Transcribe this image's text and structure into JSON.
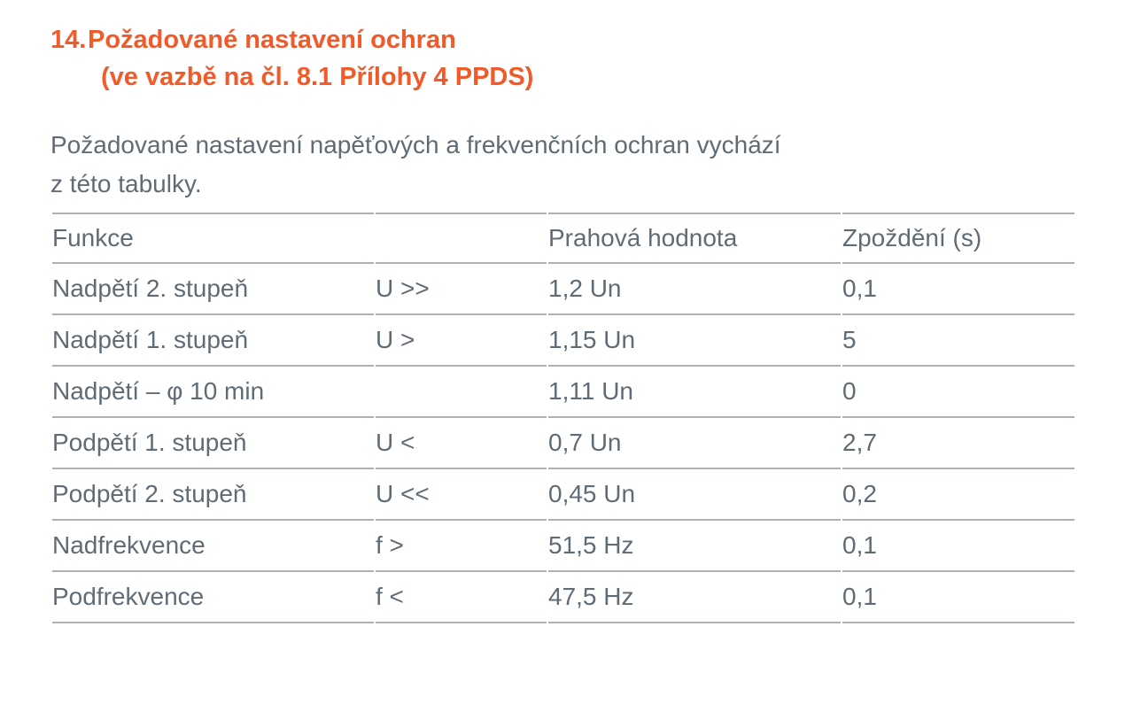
{
  "heading": {
    "number": "14.",
    "line1": "Požadované nastavení ochran",
    "line2": "(ve vazbě na čl. 8.1 Přílohy 4 PPDS)"
  },
  "intro": {
    "line1": "Požadované nastavení napěťových a frekvenčních ochran vychází",
    "line2": "z této tabulky."
  },
  "table": {
    "headers": [
      "Funkce",
      "",
      "Prahová hodnota",
      "Zpoždění (s)"
    ],
    "rows": [
      [
        "Nadpětí 2. stupeň",
        "U >>",
        "1,2 Un",
        "0,1"
      ],
      [
        "Nadpětí 1. stupeň",
        "U >",
        "1,15 Un",
        "5"
      ],
      [
        "Nadpětí – φ 10 min",
        "",
        "1,11 Un",
        "0"
      ],
      [
        "Podpětí 1. stupeň",
        "U <",
        "0,7 Un",
        "2,7"
      ],
      [
        "Podpětí 2. stupeň",
        "U <<",
        "0,45 Un",
        "0,2"
      ],
      [
        "Nadfrekvence",
        "f >",
        "51,5 Hz",
        "0,1"
      ],
      [
        "Podfrekvence",
        "f <",
        "47,5 Hz",
        "0,1"
      ]
    ]
  },
  "colors": {
    "heading": "#f15a29",
    "text": "#5f6b75",
    "rule": "#aab1b7",
    "background": "#ffffff"
  }
}
